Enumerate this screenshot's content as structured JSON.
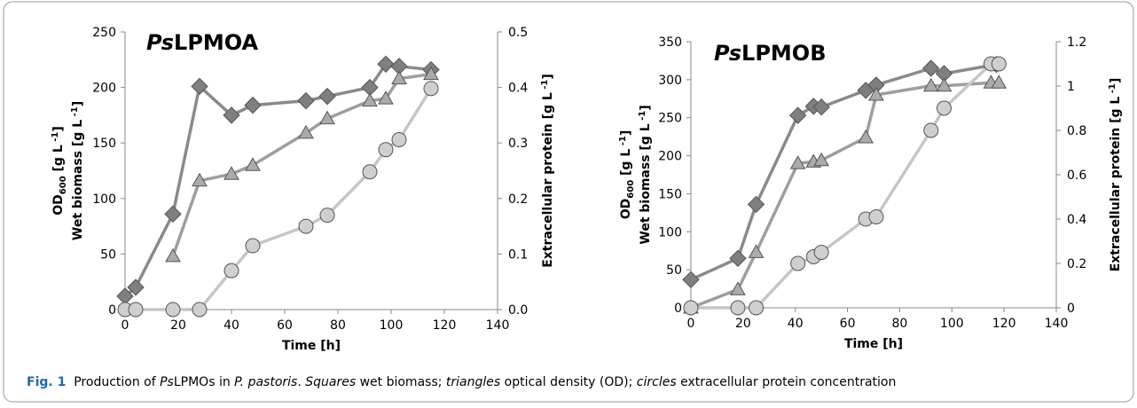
{
  "chart_data": [
    {
      "type": "line",
      "title": [
        "Ps",
        "LPMOA"
      ],
      "x_label": "Time [h]",
      "y_label": [
        "OD",
        "600",
        " [g L",
        " -1",
        "]"
      ],
      "y_label_2": [
        "Wet biomass [g L",
        " -1",
        "]"
      ],
      "y2_label": [
        "Extracellular protein [g L",
        " -1",
        "]"
      ],
      "xlim": [
        0,
        140
      ],
      "xticks": [
        0,
        20,
        40,
        60,
        80,
        100,
        120,
        140
      ],
      "ylim": [
        0,
        250
      ],
      "yticks": [
        0,
        50,
        100,
        150,
        200,
        250
      ],
      "y2lim": [
        0,
        0.5
      ],
      "y2ticks": [
        {
          "value": 0,
          "label": "0.0"
        },
        0.1,
        0.2,
        0.3,
        0.4,
        0.5
      ],
      "series": [
        {
          "marker": "diamond",
          "color": "#7f7f7f",
          "x": [
            0,
            4,
            18,
            28,
            40,
            48,
            68,
            76,
            92,
            98,
            103,
            115
          ],
          "values": [
            12,
            20,
            86,
            201,
            175,
            184,
            188,
            192,
            200,
            221,
            219,
            216
          ]
        },
        {
          "marker": "triangle",
          "color": "#ababab",
          "x": [
            18,
            28,
            40,
            48,
            68,
            76,
            92,
            98,
            103,
            115
          ],
          "values": [
            48,
            116,
            122,
            130,
            159,
            172,
            188,
            190,
            208,
            212
          ]
        },
        {
          "marker": "circle",
          "color": "#cfcfcf",
          "axis": "y2",
          "x": [
            0,
            4,
            18,
            28,
            40,
            48,
            68,
            76,
            92,
            98,
            103,
            115
          ],
          "values": [
            0,
            0,
            0,
            0,
            0.07,
            0.115,
            0.15,
            0.17,
            0.248,
            0.288,
            0.306,
            0.398
          ]
        }
      ]
    },
    {
      "type": "line",
      "title": [
        "Ps",
        "LPMOB"
      ],
      "x_label": "Time [h]",
      "y_label": [
        "OD",
        "600",
        " [g L",
        " -1",
        "]"
      ],
      "y_label_2": [
        "Wet biomass [g L",
        " -1",
        "]"
      ],
      "y2_label": [
        "Extracellular protein [g L",
        " -1",
        "]"
      ],
      "xlim": [
        0,
        140
      ],
      "xticks": [
        0,
        20,
        40,
        60,
        80,
        100,
        120,
        140
      ],
      "ylim": [
        0,
        350
      ],
      "yticks": [
        0,
        50,
        100,
        150,
        200,
        250,
        300,
        350
      ],
      "y2lim": [
        0,
        1.2
      ],
      "y2ticks": [
        0,
        0.2,
        0.4,
        0.6,
        0.8,
        1,
        1.2
      ],
      "series": [
        {
          "marker": "diamond",
          "color": "#7f7f7f",
          "x": [
            0,
            18,
            25,
            41,
            47,
            50,
            67,
            71,
            92,
            97,
            117
          ],
          "values": [
            37,
            65,
            136,
            253,
            265,
            264,
            286,
            293,
            315,
            308,
            320
          ]
        },
        {
          "marker": "triangle",
          "color": "#ababab",
          "x": [
            0,
            18,
            25,
            41,
            47,
            50,
            67,
            71,
            92,
            97,
            115,
            118
          ],
          "values": [
            0,
            24,
            73,
            190,
            192,
            194,
            224,
            280,
            292,
            292,
            296,
            296
          ]
        },
        {
          "marker": "circle",
          "color": "#cfcfcf",
          "axis": "y2",
          "x": [
            0,
            18,
            25,
            41,
            47,
            50,
            67,
            71,
            92,
            97,
            115,
            118
          ],
          "values": [
            0,
            0,
            0,
            0.2,
            0.23,
            0.25,
            0.4,
            0.41,
            0.8,
            0.9,
            1.1,
            1.1
          ]
        }
      ]
    }
  ],
  "caption": [
    {
      "text": "Fig. 1",
      "bold": true
    },
    {
      "text": "  Production of "
    },
    {
      "text": "Ps",
      "italic": true
    },
    {
      "text": "LPMOs in "
    },
    {
      "text": "P. pastoris",
      "italic": true
    },
    {
      "text": ". "
    },
    {
      "text": "Squares",
      "italic": true
    },
    {
      "text": " wet biomass; "
    },
    {
      "text": "triangles",
      "italic": true
    },
    {
      "text": " optical density (OD); "
    },
    {
      "text": "circles",
      "italic": true
    },
    {
      "text": " extracellular protein concentration"
    }
  ]
}
